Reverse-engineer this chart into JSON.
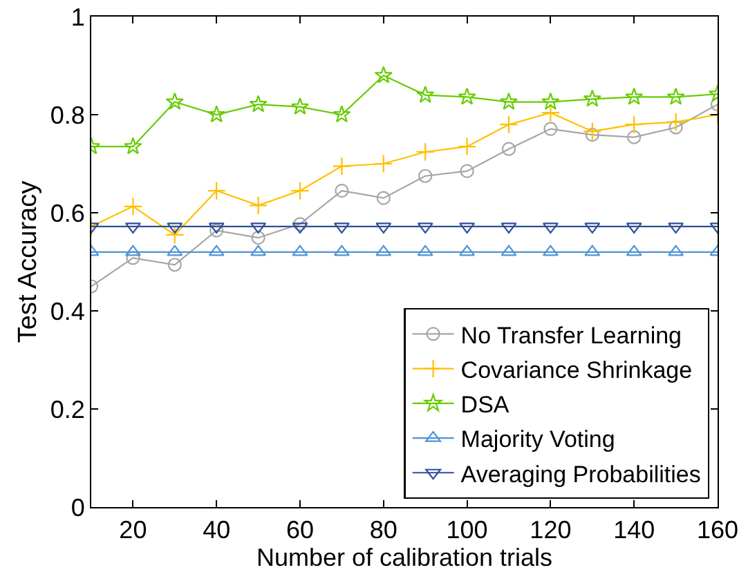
{
  "chart_data": {
    "type": "line",
    "xlabel": "Number of calibration trials",
    "ylabel": "Test Accuracy",
    "x": [
      10,
      20,
      30,
      40,
      50,
      60,
      70,
      80,
      90,
      100,
      110,
      120,
      130,
      140,
      150,
      160
    ],
    "series": [
      {
        "name": "No Transfer Learning",
        "color": "#a6a6a6",
        "marker": "circle",
        "values": [
          0.45,
          0.508,
          0.494,
          0.564,
          0.549,
          0.577,
          0.645,
          0.63,
          0.675,
          0.685,
          0.73,
          0.771,
          0.759,
          0.754,
          0.774,
          0.821
        ]
      },
      {
        "name": "Covariance Shrinkage",
        "color": "#ffc000",
        "marker": "cross",
        "values": [
          0.572,
          0.613,
          0.555,
          0.645,
          0.615,
          0.645,
          0.695,
          0.7,
          0.724,
          0.735,
          0.78,
          0.804,
          0.766,
          0.78,
          0.785,
          0.8
        ]
      },
      {
        "name": "DSA",
        "color": "#66cc00",
        "marker": "star",
        "values": [
          0.735,
          0.735,
          0.826,
          0.8,
          0.821,
          0.816,
          0.8,
          0.88,
          0.84,
          0.836,
          0.826,
          0.826,
          0.832,
          0.836,
          0.836,
          0.842
        ]
      },
      {
        "name": "Majority Voting",
        "color": "#4f94d4",
        "marker": "triangle",
        "values": [
          0.52,
          0.52,
          0.52,
          0.52,
          0.52,
          0.52,
          0.52,
          0.52,
          0.52,
          0.52,
          0.52,
          0.52,
          0.52,
          0.52,
          0.52,
          0.52
        ]
      },
      {
        "name": "Averaging Probabilities",
        "color": "#2e4f99",
        "marker": "triangle-down",
        "values": [
          0.572,
          0.572,
          0.572,
          0.572,
          0.572,
          0.572,
          0.572,
          0.572,
          0.572,
          0.572,
          0.572,
          0.572,
          0.572,
          0.572,
          0.572,
          0.572
        ]
      }
    ],
    "xlim": [
      10,
      160
    ],
    "xticks": [
      20,
      40,
      60,
      80,
      100,
      120,
      140,
      160
    ],
    "ylim": [
      0,
      1
    ],
    "yticks": [
      0,
      0.2,
      0.4,
      0.6,
      0.8,
      1
    ],
    "grid": false,
    "legend": "bottom right",
    "line_style": "solid"
  }
}
